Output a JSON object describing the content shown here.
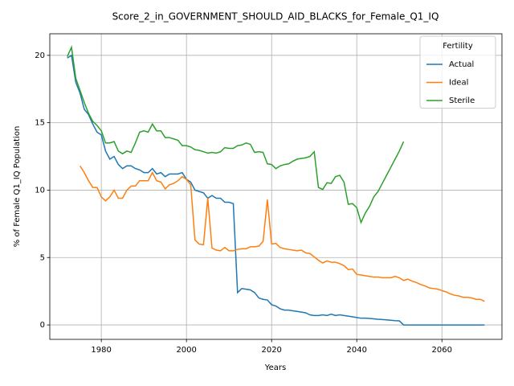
{
  "chart_data": {
    "type": "line",
    "title": "Score_2_in_GOVERNMENT_SHOULD_AID_BLACKS_for_Female_Q1_IQ",
    "x_label": "Years",
    "y_label": "% of Female Q1_IQ Population",
    "legend_title": "Fertility",
    "legend_position": "upper right",
    "grid": true,
    "x": [
      1972,
      1973,
      1974,
      1975,
      1976,
      1977,
      1978,
      1979,
      1980,
      1981,
      1982,
      1983,
      1984,
      1985,
      1986,
      1987,
      1988,
      1989,
      1990,
      1991,
      1992,
      1993,
      1994,
      1995,
      1996,
      1997,
      1998,
      1999,
      2000,
      2001,
      2002,
      2003,
      2004,
      2005,
      2006,
      2007,
      2008,
      2009,
      2010,
      2011,
      2012,
      2013,
      2014,
      2015,
      2016,
      2017,
      2018,
      2019,
      2020,
      2021,
      2022,
      2023,
      2024,
      2025,
      2026,
      2027,
      2028,
      2029,
      2030,
      2031,
      2032,
      2033,
      2034,
      2035,
      2036,
      2037,
      2038,
      2039,
      2040,
      2041,
      2042,
      2043,
      2044,
      2045,
      2046,
      2047,
      2048,
      2049,
      2050,
      2051,
      2052,
      2053,
      2054,
      2055,
      2056,
      2057,
      2058,
      2059,
      2060,
      2061,
      2062,
      2063,
      2064,
      2065,
      2066,
      2067,
      2068,
      2069,
      2070
    ],
    "series": [
      {
        "name": "Actual",
        "color": "#1f77b4",
        "values": [
          19.8,
          20.0,
          18.0,
          17.2,
          16.0,
          15.6,
          14.9,
          14.3,
          14.1,
          12.9,
          12.3,
          12.5,
          11.9,
          11.6,
          11.8,
          11.8,
          11.6,
          11.5,
          11.3,
          11.3,
          11.6,
          11.2,
          11.3,
          11.0,
          11.2,
          11.2,
          11.2,
          11.3,
          10.8,
          10.6,
          10.0,
          9.9,
          9.8,
          9.4,
          9.6,
          9.4,
          9.4,
          9.1,
          9.1,
          9.0,
          2.4,
          2.7,
          2.65,
          2.6,
          2.4,
          2.0,
          1.9,
          1.85,
          1.5,
          1.4,
          1.2,
          1.1,
          1.1,
          1.05,
          1.0,
          0.95,
          0.9,
          0.75,
          0.7,
          0.7,
          0.75,
          0.7,
          0.8,
          0.7,
          0.75,
          0.7,
          0.65,
          0.6,
          0.55,
          0.5,
          0.5,
          0.48,
          0.45,
          0.42,
          0.4,
          0.38,
          0.35,
          0.32,
          0.3,
          0,
          0,
          0,
          0,
          0,
          0,
          0,
          0,
          0,
          0,
          0,
          0,
          0,
          0,
          0,
          0,
          0,
          0,
          0,
          0
        ]
      },
      {
        "name": "Ideal",
        "color": "#ff7f0e",
        "values": [
          null,
          null,
          null,
          11.8,
          11.3,
          10.7,
          10.2,
          10.2,
          9.5,
          9.2,
          9.5,
          10.0,
          9.4,
          9.4,
          10.0,
          10.3,
          10.3,
          10.7,
          10.7,
          10.7,
          11.3,
          10.7,
          10.6,
          10.1,
          10.4,
          10.5,
          10.7,
          11.0,
          10.8,
          10.4,
          6.3,
          6.0,
          5.95,
          9.4,
          5.7,
          5.55,
          5.5,
          5.75,
          5.5,
          5.5,
          5.6,
          5.65,
          5.65,
          5.8,
          5.8,
          5.85,
          6.2,
          9.3,
          6.0,
          6.05,
          5.75,
          5.65,
          5.6,
          5.55,
          5.5,
          5.55,
          5.35,
          5.3,
          5.05,
          4.8,
          4.6,
          4.75,
          4.65,
          4.65,
          4.55,
          4.4,
          4.1,
          4.15,
          3.75,
          3.7,
          3.65,
          3.6,
          3.55,
          3.55,
          3.5,
          3.5,
          3.5,
          3.6,
          3.5,
          3.3,
          3.4,
          3.25,
          3.15,
          3.0,
          2.9,
          2.75,
          2.7,
          2.65,
          2.55,
          2.45,
          2.3,
          2.2,
          2.15,
          2.05,
          2.05,
          2.0,
          1.9,
          1.9,
          1.75
        ]
      },
      {
        "name": "Sterile",
        "color": "#2ca02c",
        "values": [
          19.9,
          20.6,
          18.3,
          17.4,
          16.5,
          15.7,
          15.1,
          14.8,
          14.4,
          13.5,
          13.5,
          13.6,
          12.9,
          12.7,
          12.9,
          12.8,
          13.5,
          14.3,
          14.4,
          14.3,
          14.9,
          14.4,
          14.4,
          13.9,
          13.9,
          13.8,
          13.7,
          13.3,
          13.3,
          13.2,
          13.0,
          12.95,
          12.85,
          12.75,
          12.8,
          12.75,
          12.85,
          13.15,
          13.1,
          13.1,
          13.3,
          13.35,
          13.5,
          13.4,
          12.8,
          12.85,
          12.8,
          11.95,
          11.9,
          11.6,
          11.8,
          11.9,
          11.95,
          12.15,
          12.3,
          12.35,
          12.4,
          12.5,
          12.85,
          10.2,
          10.05,
          10.55,
          10.5,
          11.0,
          11.1,
          10.6,
          8.95,
          9.0,
          8.7,
          7.6,
          8.3,
          8.8,
          9.5,
          9.9,
          10.5,
          11.1,
          11.7,
          12.3,
          12.9,
          13.6,
          null,
          null,
          null,
          null,
          null,
          null,
          null,
          null,
          null,
          null,
          null,
          null,
          null,
          null,
          null,
          null,
          null,
          null,
          null
        ]
      }
    ],
    "xlim": [
      1967.9,
      2074.1
    ],
    "xticks": [
      1980,
      2000,
      2020,
      2040,
      2060
    ],
    "ylim": [
      -1.07,
      21.6
    ],
    "yticks": [
      0,
      5,
      10,
      15,
      20
    ]
  }
}
